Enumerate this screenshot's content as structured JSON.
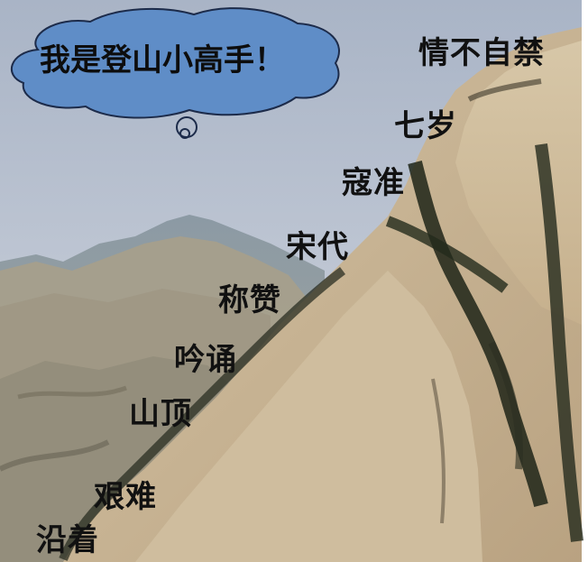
{
  "bubble": {
    "text": "我是登山小高手！"
  },
  "words": [
    {
      "id": "w1",
      "text": "情不自禁"
    },
    {
      "id": "w2",
      "text": "七岁"
    },
    {
      "id": "w3",
      "text": "寇准"
    },
    {
      "id": "w4",
      "text": "宋代"
    },
    {
      "id": "w5",
      "text": "称赞"
    },
    {
      "id": "w6",
      "text": "吟诵"
    },
    {
      "id": "w7",
      "text": "山顶"
    },
    {
      "id": "w8",
      "text": "艰难"
    },
    {
      "id": "w9",
      "text": "沿着"
    }
  ]
}
